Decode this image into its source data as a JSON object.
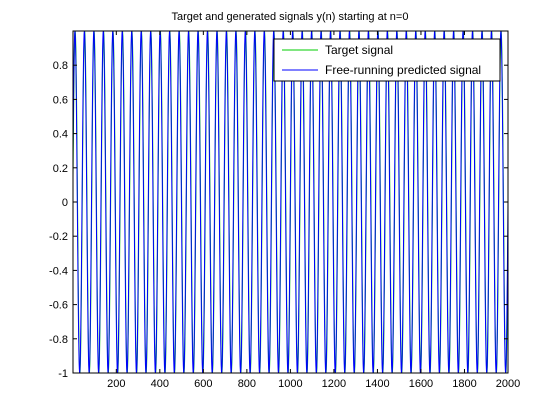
{
  "chart_data": {
    "type": "line",
    "title": "Target and generated signals y(n) starting at n=0",
    "xlabel": "",
    "ylabel": "",
    "xlim": [
      1,
      2000
    ],
    "ylim": [
      -1,
      1
    ],
    "x_ticks": [
      200,
      400,
      600,
      800,
      1000,
      1200,
      1400,
      1600,
      1800,
      2000
    ],
    "y_ticks": [
      -1,
      -0.8,
      -0.6,
      -0.4,
      -0.2,
      0,
      0.2,
      0.4,
      0.6,
      0.8
    ],
    "y_tick_labels": [
      "-1",
      "-0.8",
      "-0.6",
      "-0.4",
      "-0.2",
      "0",
      "0.2",
      "0.4",
      "0.6",
      "0.8"
    ],
    "grid": false,
    "legend_position": "top-right",
    "series": [
      {
        "name": "Target signal",
        "color": "#00cc00",
        "period": 43.5,
        "phase": 0.0,
        "amplitude": 1.0,
        "x_start": 1,
        "x_end": 2000
      },
      {
        "name": "Free-running predicted signal",
        "color": "#0000ff",
        "period": 43.5,
        "phase": 0.15,
        "amplitude": 1.0,
        "x_start": 1,
        "x_end": 2000
      }
    ]
  }
}
